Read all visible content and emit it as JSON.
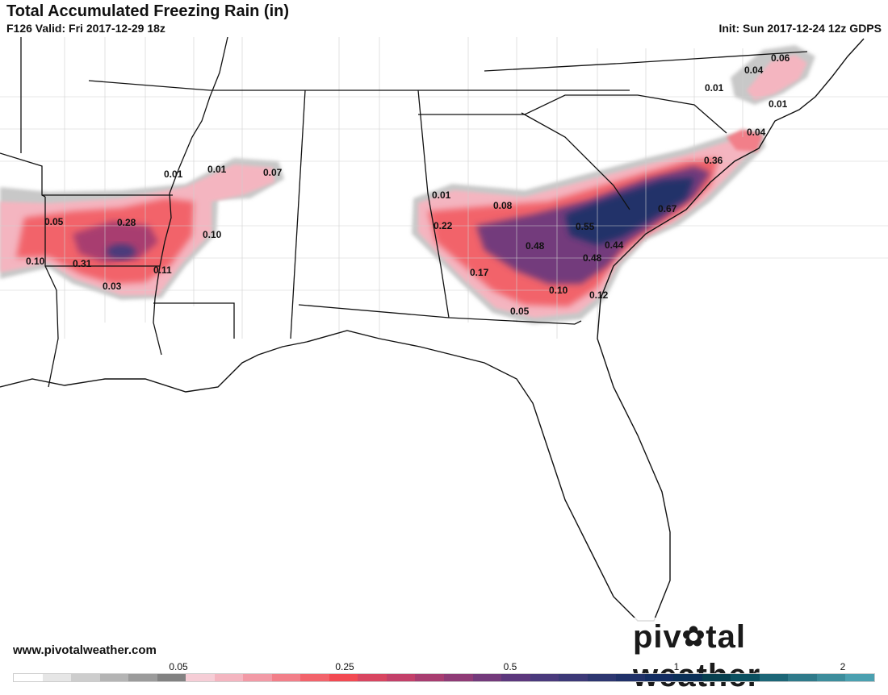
{
  "header": {
    "title": "Total Accumulated Freezing Rain (in)",
    "valid": "F126 Valid: Fri 2017-12-29 18z",
    "init": "Init: Sun 2017-12-24 12z GDPS"
  },
  "footer": {
    "website": "www.pivotalweather.com",
    "logo_pre": "piv",
    "logo_post": "tal weather"
  },
  "map_labels": [
    "0.06",
    "0.04",
    "0.01",
    "0.01",
    "0.04",
    "0.36",
    "0.67",
    "0.55",
    "0.44",
    "0.48",
    "0.48",
    "0.08",
    "0.01",
    "0.22",
    "0.17",
    "0.10",
    "0.05",
    "0.12",
    "0.01",
    "0.01",
    "0.07",
    "0.05",
    "0.28",
    "0.10",
    "0.10",
    "0.31",
    "0.11",
    "0.03"
  ],
  "colorbar": {
    "tick_labels": [
      "0.05",
      "0.25",
      "0.5",
      "1",
      "2"
    ],
    "colors": [
      "#ffffff",
      "#e6e6e6",
      "#cdcdcd",
      "#b4b4b4",
      "#9b9b9b",
      "#828282",
      "#f6cdd6",
      "#f4b5c0",
      "#f29aa6",
      "#f27f89",
      "#f2636b",
      "#f24a52",
      "#d84560",
      "#c34069",
      "#a83d70",
      "#8f3b76",
      "#733a7b",
      "#5c387d",
      "#4a3a7c",
      "#3c3977",
      "#2d3670",
      "#203169",
      "#132d62",
      "#0b3058",
      "#07404f",
      "#0a5060",
      "#1d6677",
      "#2f7a8a",
      "#3d8d9c",
      "#4ba0b0"
    ]
  }
}
